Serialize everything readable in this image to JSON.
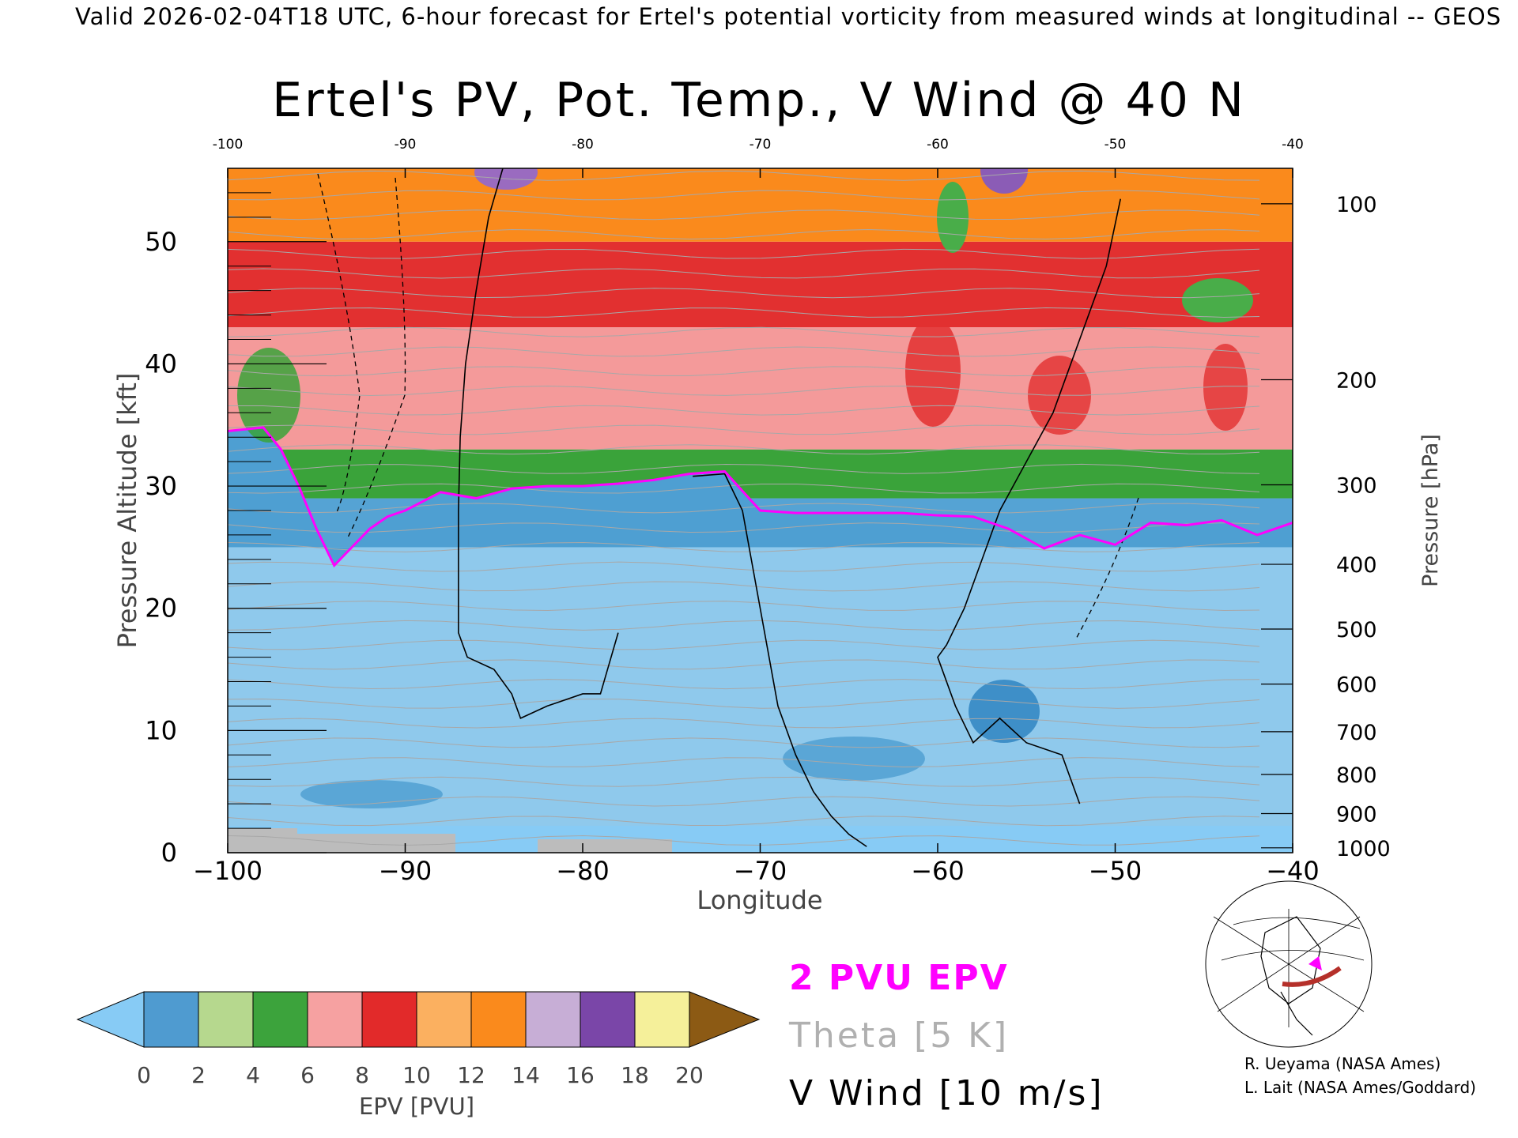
{
  "header": {
    "valid_line": "Valid 2026-02-04T18 UTC, 6-hour forecast for Ertel's potential vorticity from measured winds at longitudinal -- GEOS",
    "title": "Ertel's PV, Pot. Temp., V Wind @ 40 N"
  },
  "chart_data": {
    "type": "heatmap",
    "title": "Ertel's PV, Pot. Temp., V Wind @ 40 N",
    "xlabel": "Longitude",
    "ylabel_left": "Pressure Altitude [kft]",
    "ylabel_right": "Pressure [hPa]",
    "xlim": [
      -100,
      -40
    ],
    "ylim": [
      0,
      56
    ],
    "x_ticks": [
      -100,
      -90,
      -80,
      -70,
      -60,
      -50,
      -40
    ],
    "x_tick_labels": [
      "−100",
      "−90",
      "−80",
      "−70",
      "−60",
      "−50",
      "−40"
    ],
    "y_ticks": [
      0,
      10,
      20,
      30,
      40,
      50
    ],
    "pressure_ticks": [
      {
        "label": "100",
        "kft": 53.1
      },
      {
        "label": "200",
        "kft": 38.7
      },
      {
        "label": "300",
        "kft": 30.1
      },
      {
        "label": "400",
        "kft": 23.6
      },
      {
        "label": "500",
        "kft": 18.3
      },
      {
        "label": "600",
        "kft": 13.8
      },
      {
        "label": "700",
        "kft": 9.9
      },
      {
        "label": "800",
        "kft": 6.4
      },
      {
        "label": "900",
        "kft": 3.2
      },
      {
        "label": "1000",
        "kft": 0.4
      }
    ],
    "tropopause_2pvu": {
      "x": [
        -100,
        -98,
        -97,
        -96,
        -95,
        -94,
        -93,
        -92,
        -91,
        -90,
        -88,
        -86,
        -84,
        -82,
        -80,
        -78,
        -76,
        -74,
        -72,
        -70,
        -68,
        -66,
        -64,
        -62,
        -60,
        -58,
        -56,
        -54,
        -52,
        -50,
        -48,
        -46,
        -44,
        -42,
        -40
      ],
      "kft": [
        34.5,
        34.8,
        33.0,
        30.0,
        26.5,
        23.5,
        25.0,
        26.5,
        27.5,
        28.0,
        29.5,
        29.0,
        29.8,
        30.0,
        30.0,
        30.2,
        30.5,
        31.0,
        31.2,
        28.0,
        27.8,
        27.8,
        27.8,
        27.8,
        27.6,
        27.5,
        26.5,
        24.9,
        26.0,
        25.2,
        27.0,
        26.8,
        27.2,
        26.0,
        27.0
      ]
    },
    "pv_bands_kft": [
      {
        "color": "#8fc9ec",
        "from": 0,
        "to": 25
      },
      {
        "color": "#55a3d4",
        "from": 25,
        "to": 29
      },
      {
        "color": "#3aa33a",
        "from": 29,
        "to": 33
      },
      {
        "color": "#f49a9a",
        "from": 33,
        "to": 43
      },
      {
        "color": "#e23030",
        "from": 43,
        "to": 50
      },
      {
        "color": "#fa8a1c",
        "from": 50,
        "to": 56
      }
    ],
    "v_wind_zero_contours": [
      {
        "lon": [
          -84.5,
          -85.3,
          -86.0,
          -86.6,
          -86.9,
          -87.0,
          -87.0,
          -86.5,
          -85.0,
          -84.0,
          -83.5,
          -82.0,
          -80.0,
          -79.0,
          -78.0
        ],
        "kft": [
          56,
          52,
          46,
          40,
          34,
          28,
          18,
          16,
          15,
          13,
          11,
          12,
          13,
          13,
          18
        ]
      },
      {
        "lon": [
          -73.8,
          -72.0,
          -71.0,
          -70.5,
          -70.0,
          -69.5,
          -69.0,
          -68.0,
          -67.0,
          -66.0,
          -65.0,
          -64.0
        ],
        "kft": [
          30.8,
          31.0,
          28.0,
          24.0,
          20.0,
          16.0,
          12.0,
          8.0,
          5.0,
          3.0,
          1.5,
          0.5
        ]
      },
      {
        "lon": [
          -49.7,
          -50.5,
          -51.5,
          -52.5,
          -53.5,
          -55.0,
          -56.5,
          -57.5,
          -58.5,
          -59.5,
          -60.0,
          -59.0,
          -58.0,
          -56.5,
          -55.0,
          -53.0,
          -52.0
        ],
        "kft": [
          53.5,
          48.0,
          44.0,
          40.0,
          36.0,
          32.0,
          28.0,
          24.0,
          20.0,
          17.0,
          16.0,
          12.0,
          9.0,
          11.0,
          9.0,
          8.0,
          4.0
        ]
      }
    ],
    "annotations": {
      "pvu_label": "2 PVU EPV",
      "theta_label": "Theta [5 K]",
      "vwind_label": "V Wind [10 m/s]"
    },
    "colorbar": {
      "label": "EPV [PVU]",
      "ticks": [
        "0",
        "2",
        "4",
        "6",
        "8",
        "10",
        "12",
        "14",
        "16",
        "18",
        "20"
      ],
      "colors": [
        "#4f9bd0",
        "#b6d88e",
        "#3ca33c",
        "#f6a1a1",
        "#e22a2a",
        "#fbb060",
        "#fa8a1c",
        "#c7aed6",
        "#7a46a8",
        "#f5f09a"
      ],
      "under_color": "#87cbf5",
      "over_color": "#8c5a14"
    },
    "grid": false,
    "legend_position": "bottom"
  },
  "credits": {
    "line1": "R. Ueyama (NASA Ames)",
    "line2": "L. Lait (NASA Ames/Goddard)"
  }
}
